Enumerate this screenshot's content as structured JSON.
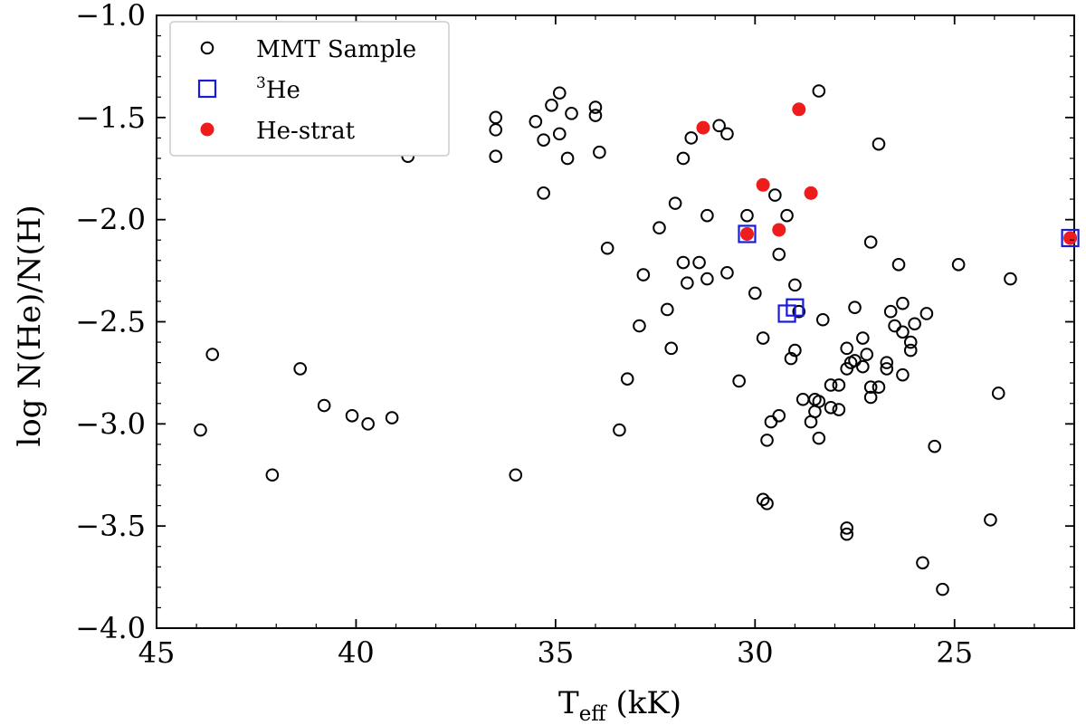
{
  "chart_data": {
    "type": "scatter",
    "title": "",
    "xlabel": "T_eff (kK)",
    "xlabel_main": "T",
    "xlabel_sub": "eff",
    "xlabel_unit": " (kK)",
    "ylabel": "log N(He)/N(H)",
    "xlim": [
      45,
      22
    ],
    "ylim": [
      -4.0,
      -1.0
    ],
    "x_inverted": true,
    "xticks": [
      45,
      40,
      35,
      30,
      25
    ],
    "xtick_labels": [
      "45",
      "40",
      "35",
      "30",
      "25"
    ],
    "yticks": [
      -1.0,
      -1.5,
      -2.0,
      -2.5,
      -3.0,
      -3.5,
      -4.0
    ],
    "ytick_labels": [
      "−1.0",
      "−1.5",
      "−2.0",
      "−2.5",
      "−3.0",
      "−3.5",
      "−4.0"
    ],
    "grid": false,
    "legend_position": "top-left",
    "series": [
      {
        "name": "MMT Sample",
        "legend_label": "MMT Sample",
        "marker": "open-circle",
        "color": "#000000",
        "points": [
          [
            43.9,
            -3.03
          ],
          [
            43.6,
            -2.66
          ],
          [
            42.1,
            -3.25
          ],
          [
            41.4,
            -2.73
          ],
          [
            40.8,
            -2.91
          ],
          [
            40.1,
            -2.96
          ],
          [
            39.7,
            -3.0
          ],
          [
            39.1,
            -2.97
          ],
          [
            38.7,
            -1.69
          ],
          [
            36.5,
            -1.5
          ],
          [
            36.5,
            -1.56
          ],
          [
            36.5,
            -1.69
          ],
          [
            36.0,
            -3.25
          ],
          [
            35.5,
            -1.52
          ],
          [
            35.3,
            -1.61
          ],
          [
            35.1,
            -1.44
          ],
          [
            35.3,
            -1.87
          ],
          [
            34.9,
            -1.38
          ],
          [
            34.9,
            -1.58
          ],
          [
            34.6,
            -1.48
          ],
          [
            34.7,
            -1.7
          ],
          [
            34.0,
            -1.45
          ],
          [
            34.0,
            -1.49
          ],
          [
            33.9,
            -1.67
          ],
          [
            33.7,
            -2.14
          ],
          [
            33.4,
            -3.03
          ],
          [
            33.2,
            -2.78
          ],
          [
            32.9,
            -2.52
          ],
          [
            32.8,
            -2.27
          ],
          [
            32.4,
            -2.04
          ],
          [
            32.2,
            -2.44
          ],
          [
            32.1,
            -2.63
          ],
          [
            32.0,
            -1.92
          ],
          [
            31.8,
            -1.7
          ],
          [
            31.8,
            -2.21
          ],
          [
            31.7,
            -2.31
          ],
          [
            31.6,
            -1.6
          ],
          [
            31.4,
            -2.21
          ],
          [
            31.2,
            -2.29
          ],
          [
            31.2,
            -1.98
          ],
          [
            30.9,
            -1.54
          ],
          [
            30.7,
            -1.58
          ],
          [
            30.7,
            -2.26
          ],
          [
            30.4,
            -2.79
          ],
          [
            30.2,
            -1.98
          ],
          [
            30.2,
            -2.07
          ],
          [
            30.0,
            -2.36
          ],
          [
            29.8,
            -2.58
          ],
          [
            29.8,
            -3.37
          ],
          [
            29.7,
            -3.39
          ],
          [
            29.7,
            -3.08
          ],
          [
            29.6,
            -2.99
          ],
          [
            29.5,
            -1.88
          ],
          [
            29.4,
            -2.96
          ],
          [
            29.4,
            -2.17
          ],
          [
            29.2,
            -1.98
          ],
          [
            29.1,
            -2.68
          ],
          [
            29.0,
            -2.32
          ],
          [
            29.0,
            -2.64
          ],
          [
            28.9,
            -2.45
          ],
          [
            28.8,
            -2.88
          ],
          [
            28.6,
            -2.99
          ],
          [
            28.5,
            -2.88
          ],
          [
            28.4,
            -2.89
          ],
          [
            28.5,
            -2.94
          ],
          [
            28.4,
            -3.07
          ],
          [
            28.4,
            -1.37
          ],
          [
            28.3,
            -2.49
          ],
          [
            28.1,
            -2.81
          ],
          [
            28.1,
            -2.92
          ],
          [
            27.9,
            -2.81
          ],
          [
            27.9,
            -2.93
          ],
          [
            27.7,
            -2.63
          ],
          [
            27.7,
            -2.73
          ],
          [
            27.6,
            -2.7
          ],
          [
            27.5,
            -2.43
          ],
          [
            27.5,
            -2.69
          ],
          [
            27.3,
            -2.72
          ],
          [
            27.3,
            -2.58
          ],
          [
            27.2,
            -2.66
          ],
          [
            27.1,
            -2.82
          ],
          [
            27.1,
            -2.87
          ],
          [
            27.1,
            -2.11
          ],
          [
            26.9,
            -2.82
          ],
          [
            26.9,
            -1.63
          ],
          [
            26.7,
            -2.7
          ],
          [
            26.7,
            -2.73
          ],
          [
            26.6,
            -2.45
          ],
          [
            26.5,
            -2.52
          ],
          [
            26.4,
            -2.22
          ],
          [
            26.3,
            -2.55
          ],
          [
            26.3,
            -2.41
          ],
          [
            26.3,
            -2.76
          ],
          [
            26.1,
            -2.6
          ],
          [
            26.1,
            -2.64
          ],
          [
            26.0,
            -2.51
          ],
          [
            25.7,
            -2.46
          ],
          [
            25.5,
            -3.11
          ],
          [
            27.7,
            -3.51
          ],
          [
            27.7,
            -3.54
          ],
          [
            25.8,
            -3.68
          ],
          [
            25.3,
            -3.81
          ],
          [
            24.9,
            -2.22
          ],
          [
            24.1,
            -3.47
          ],
          [
            23.9,
            -2.85
          ],
          [
            23.6,
            -2.29
          ],
          [
            22.1,
            -2.09
          ]
        ]
      },
      {
        "name": "3He",
        "legend_label": "3",
        "legend_label_suffix": "He",
        "marker": "open-square",
        "color": "#1a1adc",
        "points": [
          [
            30.2,
            -2.07
          ],
          [
            29.2,
            -2.46
          ],
          [
            29.0,
            -2.43
          ],
          [
            22.1,
            -2.09
          ]
        ]
      },
      {
        "name": "He-strat",
        "legend_label": "He-strat",
        "marker": "filled-circle",
        "color": "#ee1c1c",
        "points": [
          [
            31.3,
            -1.55
          ],
          [
            28.9,
            -1.46
          ],
          [
            29.8,
            -1.83
          ],
          [
            28.6,
            -1.87
          ],
          [
            30.2,
            -2.07
          ],
          [
            29.4,
            -2.05
          ],
          [
            22.1,
            -2.09
          ]
        ]
      }
    ]
  }
}
